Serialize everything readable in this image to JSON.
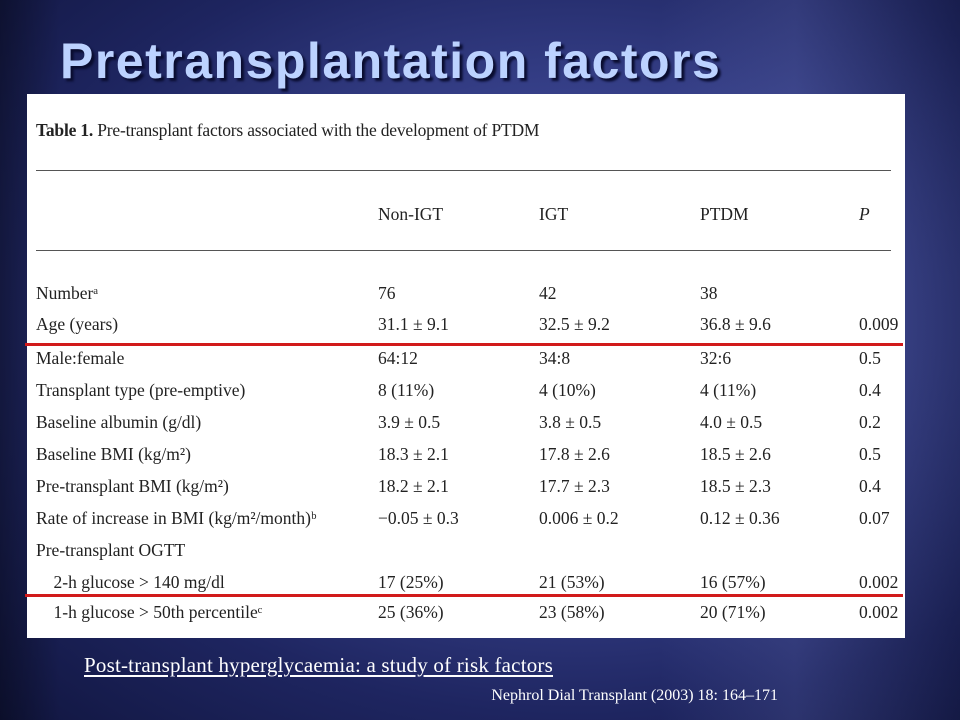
{
  "slide": {
    "title": "Pretransplantation factors",
    "footer_link": "Post-transplant hyperglycaemia: a study of risk factors",
    "footer_ref": "Nephrol Dial Transplant (2003) 18: 164–171"
  },
  "table": {
    "caption_label": "Table 1.",
    "caption_text": "Pre-transplant factors associated with the development of PTDM",
    "headers": [
      "Non-IGT",
      "IGT",
      "PTDM",
      "P"
    ],
    "rows": [
      {
        "label": "Numberᵃ",
        "nonigt": "76",
        "igt": "42",
        "ptdm": "38",
        "p": ""
      },
      {
        "label": "Age (years)",
        "nonigt": "31.1 ± 9.1",
        "igt": "32.5 ± 9.2",
        "ptdm": "36.8 ± 9.6",
        "p": "0.009"
      },
      {
        "label": "Male:female",
        "nonigt": "64:12",
        "igt": "34:8",
        "ptdm": "32:6",
        "p": "0.5"
      },
      {
        "label": "Transplant type (pre-emptive)",
        "nonigt": "8 (11%)",
        "igt": "4 (10%)",
        "ptdm": "4 (11%)",
        "p": "0.4"
      },
      {
        "label": "Baseline albumin (g/dl)",
        "nonigt": "3.9 ± 0.5",
        "igt": "3.8 ± 0.5",
        "ptdm": "4.0 ± 0.5",
        "p": "0.2"
      },
      {
        "label": "Baseline BMI (kg/m²)",
        "nonigt": "18.3 ± 2.1",
        "igt": "17.8 ± 2.6",
        "ptdm": "18.5 ± 2.6",
        "p": "0.5"
      },
      {
        "label": "Pre-transplant BMI (kg/m²)",
        "nonigt": "18.2 ± 2.1",
        "igt": "17.7 ± 2.3",
        "ptdm": "18.5 ± 2.3",
        "p": "0.4"
      },
      {
        "label": "Rate of increase in BMI (kg/m²/month)ᵇ",
        "nonigt": "−0.05 ± 0.3",
        "igt": "0.006 ± 0.2",
        "ptdm": "0.12 ± 0.36",
        "p": "0.07"
      },
      {
        "label": "Pre-transplant OGTT",
        "nonigt": "",
        "igt": "",
        "ptdm": "",
        "p": ""
      },
      {
        "label": "    2-h glucose > 140 mg/dl",
        "nonigt": "17 (25%)",
        "igt": "21 (53%)",
        "ptdm": "16 (57%)",
        "p": "0.002"
      },
      {
        "label": "    1-h glucose > 50th percentileᶜ",
        "nonigt": "25 (36%)",
        "igt": "23 (58%)",
        "ptdm": "20 (71%)",
        "p": "0.002"
      }
    ]
  },
  "colors": {
    "title": "#bcd2ff",
    "highlight_line": "#d11a1a",
    "background": "#3b4591"
  }
}
